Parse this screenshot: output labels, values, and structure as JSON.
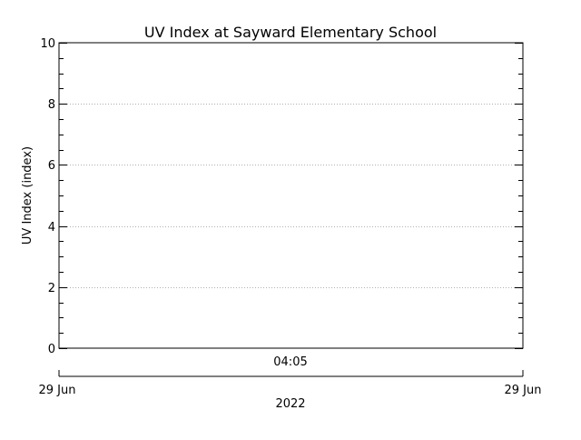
{
  "chart_data": {
    "type": "line",
    "title": "UV Index at Sayward Elementary School",
    "ylabel": "UV Index (index)",
    "ylim": [
      0,
      10
    ],
    "yticks": [
      0,
      2,
      4,
      6,
      8,
      10
    ],
    "y_minor_step": 0.5,
    "x_time_label": "04:05",
    "x_start_label": "29 Jun",
    "x_end_label": "29 Jun",
    "x_year_label": "2022",
    "grid": true,
    "series": [
      {
        "values": []
      }
    ],
    "colors": {
      "axis": "#000000",
      "grid": "#b0b0b0"
    }
  }
}
